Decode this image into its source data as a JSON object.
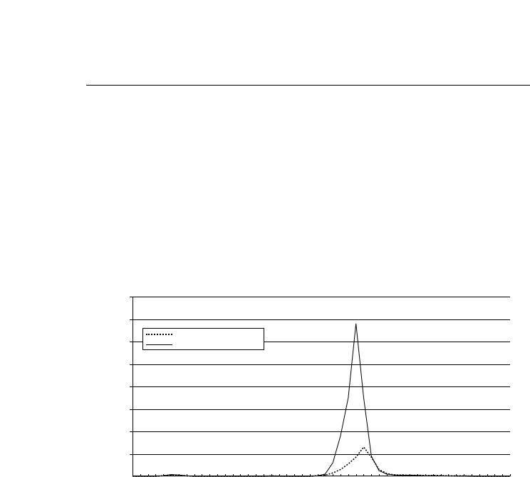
{
  "colors": {
    "axis": "#000000",
    "grid": "#000000",
    "series": "#000000",
    "background": "#ffffff"
  },
  "chart_data": {
    "type": "line",
    "title": "",
    "xlabel": "",
    "ylabel": "",
    "ylim": [
      0,
      8
    ],
    "xlim": [
      0,
      49
    ],
    "y_gridlines": [
      1,
      2,
      3,
      4,
      5,
      6,
      7,
      8
    ],
    "grid": "horizontal",
    "legend": {
      "placement": "top-left",
      "entries": [
        "",
        ""
      ]
    },
    "series": [
      {
        "style": "dotted",
        "x": [
          0,
          1,
          2,
          3,
          4,
          5,
          6,
          7,
          8,
          9,
          10,
          11,
          12,
          13,
          14,
          15,
          16,
          17,
          18,
          19,
          20,
          21,
          22,
          23,
          24,
          25,
          26,
          27,
          28,
          29,
          30,
          31,
          32,
          33,
          34,
          35,
          36,
          37,
          38,
          39,
          40,
          41,
          42,
          43,
          44,
          45,
          46,
          47,
          48,
          49
        ],
        "y": [
          0,
          0,
          0,
          0,
          0.03,
          0.06,
          0.05,
          0.02,
          0,
          0,
          0,
          0,
          0,
          0,
          0,
          0,
          0,
          0,
          0.02,
          0.01,
          0,
          0,
          0,
          0,
          0.03,
          0.05,
          0.15,
          0.3,
          0.55,
          0.85,
          1.3,
          0.85,
          0.3,
          0.12,
          0.06,
          0.05,
          0.04,
          0.05,
          0.03,
          0.04,
          0.03,
          0.02,
          0.02,
          0.02,
          0.01,
          0,
          0,
          0,
          0,
          0
        ]
      },
      {
        "style": "solid",
        "x": [
          0,
          1,
          2,
          3,
          4,
          5,
          6,
          7,
          8,
          9,
          10,
          11,
          12,
          13,
          14,
          15,
          16,
          17,
          18,
          19,
          20,
          21,
          22,
          23,
          24,
          25,
          26,
          27,
          28,
          29,
          30,
          31,
          32,
          33,
          34,
          35,
          36,
          37,
          38,
          39,
          40,
          41,
          42,
          43,
          44,
          45,
          46,
          47,
          48,
          49
        ],
        "y": [
          0,
          0,
          0,
          0,
          0.02,
          0.08,
          0.06,
          0.02,
          0,
          0,
          0,
          0,
          0,
          0,
          0,
          0,
          0,
          0,
          0,
          0,
          0,
          0,
          0,
          0,
          0.02,
          0.1,
          0.6,
          1.8,
          3.5,
          6.8,
          3.5,
          0.9,
          0.25,
          0.1,
          0.06,
          0.05,
          0.05,
          0.04,
          0.03,
          0.03,
          0.02,
          0.02,
          0.01,
          0.01,
          0,
          0,
          0,
          0,
          0,
          0
        ]
      }
    ]
  }
}
